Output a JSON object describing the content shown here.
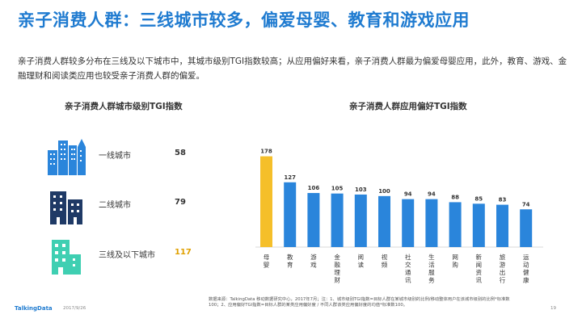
{
  "title": "亲子消费人群：三线城市较多，偏爱母婴、教育和游戏应用",
  "description": "亲子消费人群较多分布在三线及以下城市中，其城市级别TGI指数较高；从应用偏好来看，亲子消费人群最为偏爱母婴应用，此外，教育、游戏、金融理财和阅读类应用也较受亲子消费人群的偏爱。",
  "left_panel": {
    "title": "亲子消费人群城市级别TGI指数",
    "rows": [
      {
        "label": "一线城市",
        "value": "58",
        "icon": "skyscraper-cluster-icon",
        "color": "#2a85db"
      },
      {
        "label": "二线城市",
        "value": "79",
        "icon": "city-buildings-icon",
        "color": "#1f3a66"
      },
      {
        "label": "三线及以下城市",
        "value": "117",
        "icon": "small-building-icon",
        "color": "#3fcfb2"
      }
    ]
  },
  "right_panel": {
    "title": "亲子消费人群应用偏好TGI指数"
  },
  "chart_data": {
    "type": "bar",
    "title": "亲子消费人群应用偏好TGI指数",
    "categories": [
      "母婴",
      "教育",
      "游戏",
      "金融理财",
      "阅读",
      "视频",
      "社交通讯",
      "生活服务",
      "网购",
      "新闻资讯",
      "旅游出行",
      "运动健康"
    ],
    "values": [
      178,
      127,
      106,
      105,
      103,
      100,
      94,
      94,
      88,
      85,
      83,
      74
    ],
    "bar_colors": [
      "#f5bf2a",
      "#2a85db",
      "#2a85db",
      "#2a85db",
      "#2a85db",
      "#2a85db",
      "#2a85db",
      "#2a85db",
      "#2a85db",
      "#2a85db",
      "#2a85db",
      "#2a85db"
    ],
    "ylim": [
      0,
      190
    ],
    "grid": false,
    "data_labels": true
  },
  "footer": {
    "source_line1": "数据来源：TalkingData 移动数据研究中心，2017年7月；注：1、城市级别TGI指数=目标人群在某城市级别的比例/移动整体用户在该城市级别的比例*标准数",
    "source_line2": "100；2、应用偏好TGI指数=目标人群的某类应用偏好度 / 不同人群该类应用偏好度的均值*标准数100。",
    "brand": "TalkingData",
    "date": "2017/9/26",
    "page": "19"
  }
}
